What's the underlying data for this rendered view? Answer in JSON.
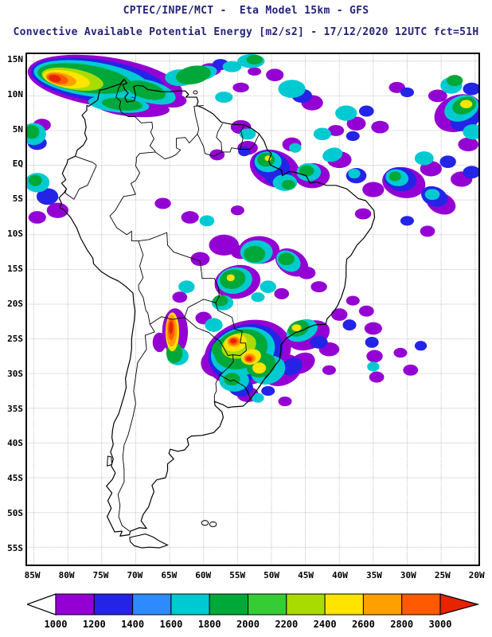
{
  "header": {
    "line1": "CPTEC/INPE/MCT -  Eta Model 15km - GFS",
    "line2": "Convective Available Potential Energy [m2/s2] - 17/12/2020 12UTC fct=51H"
  },
  "map": {
    "extent": {
      "lon_min": -86,
      "lon_max": -19.5,
      "lat_min": -57.5,
      "lat_max": 16
    },
    "lat_ticks": [
      {
        "label": "15N",
        "deg": 15
      },
      {
        "label": "10N",
        "deg": 10
      },
      {
        "label": "5N",
        "deg": 5
      },
      {
        "label": "EQ",
        "deg": 0
      },
      {
        "label": "5S",
        "deg": -5
      },
      {
        "label": "10S",
        "deg": -10
      },
      {
        "label": "15S",
        "deg": -15
      },
      {
        "label": "20S",
        "deg": -20
      },
      {
        "label": "25S",
        "deg": -25
      },
      {
        "label": "30S",
        "deg": -30
      },
      {
        "label": "35S",
        "deg": -35
      },
      {
        "label": "40S",
        "deg": -40
      },
      {
        "label": "45S",
        "deg": -45
      },
      {
        "label": "50S",
        "deg": -50
      },
      {
        "label": "55S",
        "deg": -55
      }
    ],
    "lon_ticks": [
      {
        "label": "85W",
        "deg": -85
      },
      {
        "label": "80W",
        "deg": -80
      },
      {
        "label": "75W",
        "deg": -75
      },
      {
        "label": "70W",
        "deg": -70
      },
      {
        "label": "65W",
        "deg": -65
      },
      {
        "label": "60W",
        "deg": -60
      },
      {
        "label": "55W",
        "deg": -55
      },
      {
        "label": "50W",
        "deg": -50
      },
      {
        "label": "45W",
        "deg": -45
      },
      {
        "label": "40W",
        "deg": -40
      },
      {
        "label": "35W",
        "deg": -35
      },
      {
        "label": "30W",
        "deg": -30
      },
      {
        "label": "25W",
        "deg": -25
      },
      {
        "label": "20W",
        "deg": -20
      }
    ]
  },
  "colorbar": {
    "values": [
      "1000",
      "1200",
      "1400",
      "1600",
      "1800",
      "2000",
      "2200",
      "2400",
      "2600",
      "2800",
      "3000"
    ],
    "segment_colors": [
      "#9400D3",
      "#2424E6",
      "#2E8BFF",
      "#00CAD1",
      "#00A839",
      "#36CC36",
      "#A8DC00",
      "#FFE400",
      "#FFA000",
      "#FF5A00"
    ],
    "under_color": "#FFFFFF",
    "over_color": "#E62400",
    "units": "m2/s2"
  },
  "cape_field": {
    "units": "m2/s2",
    "blobs": [
      [
        0,
        -74.5,
        12.0,
        11.5,
        3.6,
        8
      ],
      [
        0,
        -70.5,
        8.4,
        5.5,
        1.4,
        5
      ],
      [
        0,
        -64.5,
        9.3,
        2.0,
        1.0,
        0
      ],
      [
        0,
        -59.0,
        13.8,
        1.6,
        0.9,
        0
      ],
      [
        0,
        -54.5,
        11.2,
        1.2,
        0.7,
        0
      ],
      [
        0,
        -52.5,
        13.5,
        1.0,
        0.6,
        0
      ],
      [
        0,
        -83.8,
        5.8,
        1.3,
        0.9,
        0
      ],
      [
        0,
        -49.5,
        13.0,
        1.3,
        0.9,
        0
      ],
      [
        0,
        -44.0,
        9.0,
        1.6,
        1.1,
        0
      ],
      [
        0,
        -37.5,
        6.0,
        1.4,
        1.0,
        0
      ],
      [
        0,
        -34.0,
        5.5,
        1.3,
        0.9,
        0
      ],
      [
        0,
        -31.5,
        11.2,
        1.2,
        0.8,
        0
      ],
      [
        0,
        -25.5,
        10.0,
        1.4,
        0.9,
        0
      ],
      [
        0,
        -22.5,
        7.5,
        3.6,
        2.6,
        -20
      ],
      [
        0,
        -21.0,
        3.0,
        1.5,
        1.0,
        0
      ],
      [
        0,
        -54.5,
        5.5,
        1.5,
        1.0,
        0
      ],
      [
        0,
        -58.0,
        1.5,
        1.1,
        0.8,
        0
      ],
      [
        0,
        -53.5,
        2.5,
        1.5,
        1.0,
        0
      ],
      [
        0,
        -49.5,
        -0.5,
        3.8,
        2.6,
        20
      ],
      [
        0,
        -44.0,
        -1.5,
        2.6,
        1.8,
        0
      ],
      [
        0,
        -40.0,
        0.8,
        1.8,
        1.2,
        0
      ],
      [
        0,
        -40.5,
        5.0,
        1.2,
        0.8,
        0
      ],
      [
        0,
        -35.0,
        -3.5,
        1.6,
        1.1,
        0
      ],
      [
        0,
        -30.5,
        -2.5,
        3.2,
        2.2,
        10
      ],
      [
        0,
        -26.5,
        -0.5,
        1.6,
        1.1,
        0
      ],
      [
        0,
        -25.0,
        -5.5,
        2.2,
        1.5,
        20
      ],
      [
        0,
        -22.0,
        -2.0,
        1.6,
        1.1,
        0
      ],
      [
        0,
        -36.5,
        -7.0,
        1.2,
        0.8,
        0
      ],
      [
        0,
        -27.0,
        -9.5,
        1.1,
        0.8,
        0
      ],
      [
        0,
        -81.5,
        -6.5,
        1.6,
        1.1,
        0
      ],
      [
        0,
        -84.5,
        -7.5,
        1.3,
        0.9,
        0
      ],
      [
        0,
        -66.0,
        -5.5,
        1.2,
        0.8,
        0
      ],
      [
        0,
        -62.0,
        -7.5,
        1.3,
        0.9,
        0
      ],
      [
        0,
        -55.0,
        -6.5,
        1.0,
        0.7,
        0
      ],
      [
        0,
        -57.0,
        -11.5,
        2.2,
        1.5,
        0
      ],
      [
        0,
        -54.5,
        -12.5,
        1.5,
        1.0,
        0
      ],
      [
        0,
        -51.8,
        -12.2,
        3.0,
        2.0,
        0
      ],
      [
        0,
        -47.0,
        -14.0,
        2.6,
        1.8,
        30
      ],
      [
        0,
        -44.8,
        -15.5,
        1.3,
        0.9,
        0
      ],
      [
        0,
        -43.0,
        -17.5,
        1.2,
        0.8,
        0
      ],
      [
        0,
        -55.0,
        -16.8,
        3.4,
        2.4,
        -10
      ],
      [
        0,
        -48.5,
        -18.5,
        1.1,
        0.8,
        0
      ],
      [
        0,
        -60.5,
        -13.5,
        1.4,
        1.0,
        0
      ],
      [
        0,
        -63.5,
        -19.0,
        1.1,
        0.8,
        0
      ],
      [
        0,
        -60.0,
        -22.0,
        1.2,
        0.9,
        0
      ],
      [
        0,
        -64.2,
        -24.0,
        1.9,
        3.4,
        0
      ],
      [
        0,
        -66.5,
        -25.5,
        1.0,
        1.4,
        0
      ],
      [
        0,
        -53.5,
        -27.0,
        6.5,
        4.6,
        -15
      ],
      [
        0,
        -48.5,
        -29.5,
        3.0,
        2.2,
        -20
      ],
      [
        0,
        -58.0,
        -28.5,
        2.4,
        2.0,
        0
      ],
      [
        0,
        -53.5,
        -33.0,
        1.6,
        1.1,
        0
      ],
      [
        0,
        -45.5,
        -28.5,
        2.0,
        1.4,
        -25
      ],
      [
        0,
        -44.5,
        -24.5,
        3.2,
        2.0,
        -20
      ],
      [
        0,
        -41.5,
        -26.5,
        1.5,
        1.0,
        0
      ],
      [
        0,
        -40.0,
        -21.5,
        1.2,
        0.9,
        0
      ],
      [
        0,
        -36.0,
        -21.0,
        1.1,
        0.8,
        0
      ],
      [
        0,
        -35.0,
        -23.5,
        1.3,
        0.9,
        0
      ],
      [
        0,
        -34.8,
        -27.5,
        1.2,
        0.9,
        0
      ],
      [
        0,
        -34.5,
        -30.5,
        1.1,
        0.8,
        0
      ],
      [
        0,
        -31.0,
        -27.0,
        1.0,
        0.7,
        0
      ],
      [
        0,
        -29.5,
        -29.5,
        1.1,
        0.8,
        0
      ],
      [
        0,
        -38.0,
        -19.5,
        1.0,
        0.7,
        0
      ],
      [
        0,
        -41.5,
        -29.5,
        1.0,
        0.7,
        0
      ],
      [
        0,
        -48.0,
        -34.0,
        1.0,
        0.7,
        0
      ],
      [
        0,
        -47.0,
        3.0,
        1.4,
        1.0,
        0
      ],
      [
        1,
        -75.5,
        12.2,
        10.0,
        3.0,
        8
      ],
      [
        1,
        -57.5,
        14.5,
        1.2,
        0.8,
        0
      ],
      [
        1,
        -84.5,
        3.2,
        1.4,
        1.0,
        0
      ],
      [
        1,
        -45.5,
        10.0,
        1.5,
        1.0,
        0
      ],
      [
        1,
        -36.0,
        7.8,
        1.1,
        0.8,
        0
      ],
      [
        1,
        -30.0,
        10.5,
        1.0,
        0.7,
        0
      ],
      [
        1,
        -21.5,
        6.5,
        2.2,
        1.5,
        -20
      ],
      [
        1,
        -20.5,
        11.0,
        1.3,
        0.9,
        0
      ],
      [
        1,
        -38.0,
        4.2,
        1.0,
        0.7,
        0
      ],
      [
        1,
        -50.0,
        0.0,
        2.8,
        2.0,
        20
      ],
      [
        1,
        -49.0,
        -1.5,
        2.0,
        1.5,
        0
      ],
      [
        1,
        -54.0,
        2.0,
        0.9,
        0.7,
        0
      ],
      [
        1,
        -37.5,
        -1.5,
        1.5,
        1.1,
        0
      ],
      [
        1,
        -31.0,
        -2.0,
        2.4,
        1.7,
        10
      ],
      [
        1,
        -26.0,
        -4.5,
        2.0,
        1.4,
        20
      ],
      [
        1,
        -24.0,
        0.5,
        1.2,
        0.9,
        0
      ],
      [
        1,
        -20.5,
        -1.0,
        1.3,
        0.9,
        0
      ],
      [
        1,
        -30.0,
        -8.0,
        1.0,
        0.7,
        0
      ],
      [
        1,
        -83.0,
        -4.5,
        1.6,
        1.2,
        0
      ],
      [
        1,
        -53.8,
        -27.0,
        5.6,
        4.0,
        -15
      ],
      [
        1,
        -47.0,
        -29.0,
        1.6,
        1.2,
        -25
      ],
      [
        1,
        -54.5,
        -32.0,
        1.8,
        1.3,
        0
      ],
      [
        1,
        -43.0,
        -25.5,
        1.3,
        0.9,
        0
      ],
      [
        1,
        -38.5,
        -23.0,
        1.0,
        0.8,
        0
      ],
      [
        1,
        -35.2,
        -25.5,
        1.0,
        0.8,
        0
      ],
      [
        1,
        -28.0,
        -26.0,
        0.9,
        0.7,
        0
      ],
      [
        1,
        -50.5,
        -32.5,
        1.0,
        0.7,
        0
      ],
      [
        3,
        -76.5,
        12.4,
        8.6,
        2.5,
        8
      ],
      [
        3,
        -68.0,
        10.6,
        4.0,
        1.6,
        15
      ],
      [
        3,
        -72.5,
        8.8,
        4.5,
        1.2,
        5
      ],
      [
        3,
        -63.5,
        12.6,
        2.2,
        1.2,
        0
      ],
      [
        3,
        -60.0,
        13.3,
        2.0,
        1.0,
        -10
      ],
      [
        3,
        -55.8,
        14.2,
        1.4,
        0.8,
        0
      ],
      [
        3,
        -53.0,
        15.0,
        2.0,
        1.0,
        0
      ],
      [
        3,
        -57.0,
        9.8,
        1.3,
        0.8,
        0
      ],
      [
        3,
        -85.0,
        4.5,
        1.8,
        1.6,
        0
      ],
      [
        3,
        -47.0,
        11.0,
        2.0,
        1.3,
        0
      ],
      [
        3,
        -39.0,
        7.5,
        1.6,
        1.1,
        0
      ],
      [
        3,
        -42.5,
        4.5,
        1.3,
        0.9,
        0
      ],
      [
        3,
        -27.5,
        1.0,
        1.4,
        1.0,
        0
      ],
      [
        3,
        -23.5,
        11.5,
        1.6,
        1.2,
        0
      ],
      [
        3,
        -22.0,
        8.2,
        2.6,
        1.8,
        -20
      ],
      [
        3,
        -20.3,
        4.8,
        1.5,
        1.1,
        0
      ],
      [
        3,
        -53.5,
        4.5,
        1.2,
        0.8,
        0
      ],
      [
        3,
        -50.5,
        0.5,
        2.0,
        1.5,
        0
      ],
      [
        3,
        -48.0,
        -2.5,
        1.8,
        1.2,
        0
      ],
      [
        3,
        -46.5,
        2.5,
        0.9,
        0.7,
        0
      ],
      [
        3,
        -44.5,
        -1.0,
        1.8,
        1.3,
        0
      ],
      [
        3,
        -41.0,
        1.5,
        1.5,
        1.0,
        -15
      ],
      [
        3,
        -37.8,
        -1.2,
        0.9,
        0.7,
        0
      ],
      [
        3,
        -31.5,
        -1.8,
        1.7,
        1.2,
        10
      ],
      [
        3,
        -26.3,
        -4.2,
        1.1,
        0.8,
        0
      ],
      [
        3,
        -84.5,
        -2.5,
        1.8,
        1.4,
        0
      ],
      [
        3,
        -59.5,
        -8.0,
        1.1,
        0.8,
        0
      ],
      [
        3,
        -52.2,
        -12.5,
        2.4,
        1.7,
        0
      ],
      [
        3,
        -47.5,
        -13.8,
        1.9,
        1.4,
        30
      ],
      [
        3,
        -55.4,
        -16.6,
        2.6,
        1.9,
        -10
      ],
      [
        3,
        -50.5,
        -17.5,
        1.2,
        0.9,
        0
      ],
      [
        3,
        -52.0,
        -19.0,
        1.0,
        0.7,
        0
      ],
      [
        3,
        -57.2,
        -19.8,
        1.6,
        1.1,
        0
      ],
      [
        3,
        -62.5,
        -17.5,
        1.2,
        0.9,
        0
      ],
      [
        3,
        -58.5,
        -23.0,
        1.3,
        1.0,
        0
      ],
      [
        3,
        -63.8,
        -27.5,
        1.6,
        1.3,
        0
      ],
      [
        3,
        -54.2,
        -26.8,
        4.8,
        3.4,
        -15
      ],
      [
        3,
        -50.5,
        -29.5,
        2.6,
        2.0,
        -20
      ],
      [
        3,
        -55.5,
        -31.0,
        2.2,
        1.6,
        0
      ],
      [
        3,
        -45.5,
        -23.8,
        2.4,
        1.5,
        -20
      ],
      [
        3,
        -35.0,
        -29.0,
        0.9,
        0.7,
        0
      ],
      [
        3,
        -52.0,
        -33.5,
        0.9,
        0.7,
        0
      ],
      [
        4,
        -77.5,
        12.5,
        7.0,
        2.0,
        8
      ],
      [
        4,
        -68.5,
        10.8,
        3.0,
        1.2,
        15
      ],
      [
        4,
        -72.0,
        8.8,
        3.0,
        0.9,
        5
      ],
      [
        4,
        -61.5,
        13.0,
        2.6,
        1.3,
        -10
      ],
      [
        4,
        -52.5,
        15.2,
        1.2,
        0.7,
        0
      ],
      [
        4,
        -85.3,
        4.8,
        1.1,
        1.0,
        0
      ],
      [
        4,
        -23.0,
        12.2,
        1.2,
        0.8,
        0
      ],
      [
        4,
        -21.6,
        8.6,
        1.8,
        1.2,
        -20
      ],
      [
        4,
        -50.8,
        0.8,
        1.3,
        1.0,
        0
      ],
      [
        4,
        -47.5,
        -2.8,
        1.0,
        0.7,
        0
      ],
      [
        4,
        -44.8,
        -0.8,
        1.1,
        0.8,
        0
      ],
      [
        4,
        -31.8,
        -1.6,
        0.9,
        0.7,
        0
      ],
      [
        4,
        -84.8,
        -2.2,
        1.0,
        0.8,
        0
      ],
      [
        4,
        -52.5,
        -12.8,
        1.6,
        1.2,
        0
      ],
      [
        4,
        -47.8,
        -13.5,
        1.2,
        0.9,
        0
      ],
      [
        4,
        -55.7,
        -16.4,
        1.9,
        1.4,
        -10
      ],
      [
        4,
        -57.5,
        -19.5,
        1.1,
        0.8,
        0
      ],
      [
        4,
        -64.3,
        -27.0,
        1.2,
        1.5,
        0
      ],
      [
        4,
        -54.5,
        -26.5,
        4.0,
        2.8,
        -15
      ],
      [
        4,
        -51.5,
        -28.8,
        2.2,
        1.7,
        -20
      ],
      [
        4,
        -57.0,
        -26.5,
        1.8,
        1.4,
        0
      ],
      [
        4,
        -55.8,
        -30.8,
        1.2,
        0.9,
        0
      ],
      [
        4,
        -46.0,
        -23.5,
        1.6,
        1.1,
        -20
      ],
      [
        6,
        -79.3,
        12.4,
        4.6,
        1.5,
        10
      ],
      [
        6,
        -54.8,
        -26.0,
        2.6,
        1.8,
        -15
      ],
      [
        7,
        -80.2,
        12.4,
        3.5,
        1.2,
        10
      ],
      [
        7,
        -21.3,
        8.8,
        0.9,
        0.6,
        0
      ],
      [
        7,
        -50.5,
        1.0,
        0.5,
        0.4,
        0
      ],
      [
        7,
        -56.0,
        -16.2,
        0.6,
        0.5,
        0
      ],
      [
        7,
        -64.6,
        -24.0,
        1.0,
        2.8,
        0
      ],
      [
        7,
        -55.3,
        -25.6,
        1.7,
        1.2,
        -15
      ],
      [
        7,
        -53.0,
        -27.6,
        1.5,
        1.1,
        -15
      ],
      [
        7,
        -51.8,
        -29.2,
        1.0,
        0.8,
        0
      ],
      [
        7,
        -46.3,
        -23.4,
        0.7,
        0.5,
        0
      ],
      [
        8,
        -81.0,
        12.4,
        2.3,
        0.9,
        12
      ],
      [
        8,
        -64.7,
        -23.8,
        0.8,
        2.3,
        0
      ],
      [
        8,
        -55.5,
        -25.4,
        1.0,
        0.75,
        0
      ],
      [
        8,
        -53.2,
        -27.8,
        0.9,
        0.7,
        0
      ],
      [
        9,
        -81.5,
        12.45,
        1.6,
        0.7,
        12
      ],
      [
        9,
        -64.75,
        -23.6,
        0.5,
        1.6,
        0
      ],
      [
        9,
        -55.55,
        -25.35,
        0.7,
        0.55,
        0
      ],
      [
        9,
        -53.25,
        -27.85,
        0.65,
        0.5,
        0
      ],
      [
        10,
        -81.9,
        12.5,
        0.9,
        0.5,
        12
      ],
      [
        10,
        -64.8,
        -23.4,
        0.3,
        0.9,
        0
      ],
      [
        10,
        -55.6,
        -25.3,
        0.45,
        0.35,
        0
      ],
      [
        10,
        -53.3,
        -27.9,
        0.4,
        0.32,
        0
      ]
    ]
  }
}
